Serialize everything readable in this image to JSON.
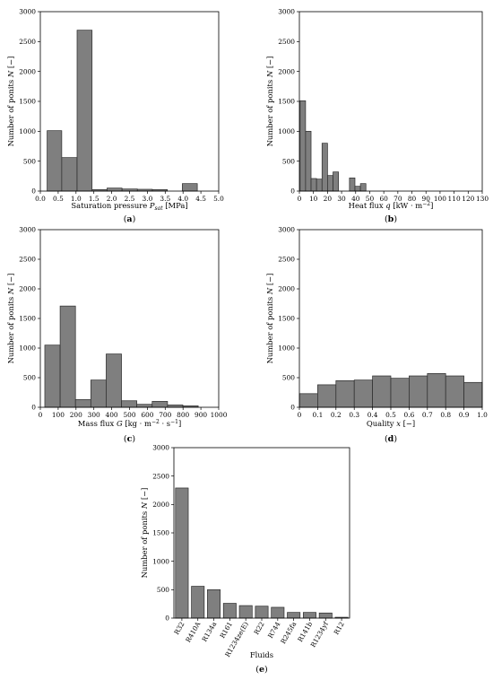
{
  "chart_data": [
    {
      "id": "a",
      "type": "histogram",
      "panel_label": "(a)",
      "xlabel": "Saturation pressure P_sat [MPa]",
      "xlabel_main": "Saturation pressure ",
      "xlabel_sym": "P",
      "xlabel_sub": "sat",
      "xlabel_unit": " [MPa]",
      "ylabel": "Number of ponits N [−]",
      "ylabel_main": "Number of ponits ",
      "ylabel_sym": "N",
      "ylabel_unit": " [−]",
      "xlim": [
        0,
        5.0
      ],
      "ylim": [
        0,
        3000
      ],
      "xticks": [
        0.0,
        0.5,
        1.0,
        1.5,
        2.0,
        2.5,
        3.0,
        3.5,
        4.0,
        4.5,
        5.0
      ],
      "xtick_labels": [
        "0.0",
        "0.5",
        "1.0",
        "1.5",
        "2.0",
        "2.5",
        "3.0",
        "3.5",
        "4.0",
        "4.5",
        "5.0"
      ],
      "yticks": [
        0,
        500,
        1000,
        1500,
        2000,
        2500,
        3000
      ],
      "ytick_labels": [
        "0",
        "500",
        "1000",
        "1500",
        "2000",
        "2500",
        "3000"
      ],
      "bins": [
        [
          0.19,
          0.6
        ],
        [
          0.6,
          1.03
        ],
        [
          1.03,
          1.45
        ],
        [
          1.45,
          1.87
        ],
        [
          1.87,
          2.29
        ],
        [
          2.29,
          2.72
        ],
        [
          2.72,
          3.14
        ],
        [
          3.14,
          3.56
        ],
        [
          3.56,
          3.98
        ],
        [
          3.98,
          4.4
        ]
      ],
      "values": [
        1010,
        560,
        2690,
        25,
        50,
        35,
        30,
        25,
        0,
        125
      ]
    },
    {
      "id": "b",
      "type": "histogram",
      "panel_label": "(b)",
      "xlabel": "Heat flux q [kW·m⁻²]",
      "xlabel_main": "Heat flux ",
      "xlabel_sym": "q",
      "xlabel_sub": "",
      "xlabel_unit": " [kW · m",
      "xlabel_sup": "−2",
      "xlabel_unit2": "]",
      "ylabel": "Number of ponits N [−]",
      "ylabel_main": "Number of ponits ",
      "ylabel_sym": "N",
      "ylabel_unit": " [−]",
      "xlim": [
        0,
        130
      ],
      "ylim": [
        0,
        3000
      ],
      "xticks": [
        0,
        10,
        20,
        30,
        40,
        50,
        60,
        70,
        80,
        90,
        100,
        110,
        120,
        130
      ],
      "xtick_labels": [
        "0",
        "10",
        "20",
        "30",
        "40",
        "50",
        "60",
        "70",
        "80",
        "90",
        "100",
        "110",
        "120",
        "130"
      ],
      "yticks": [
        0,
        500,
        1000,
        1500,
        2000,
        2500,
        3000
      ],
      "ytick_labels": [
        "0",
        "500",
        "1000",
        "1500",
        "2000",
        "2500",
        "3000"
      ],
      "bins": [
        [
          0.5,
          4.4
        ],
        [
          4.4,
          8.3
        ],
        [
          8.3,
          12.2
        ],
        [
          12.2,
          16.1
        ],
        [
          16.1,
          20.0
        ],
        [
          20.0,
          23.9
        ],
        [
          23.9,
          27.8
        ],
        [
          27.8,
          31.7
        ],
        [
          31.7,
          35.6
        ],
        [
          35.6,
          39.5
        ],
        [
          39.5,
          43.4
        ],
        [
          43.4,
          47.3
        ]
      ],
      "values": [
        1510,
        1000,
        210,
        200,
        800,
        260,
        320,
        0,
        0,
        220,
        80,
        125
      ]
    },
    {
      "id": "c",
      "type": "histogram",
      "panel_label": "(c)",
      "xlabel": "Mass flux G [kg·m⁻²·s⁻¹]",
      "xlabel_main": "Mass flux ",
      "xlabel_sym": "G",
      "xlabel_sub": "",
      "xlabel_unit": " [kg · m",
      "xlabel_sup": "−2",
      "xlabel_unit2": " · s",
      "xlabel_sup2": "−1",
      "xlabel_unit3": "]",
      "ylabel": "Number of ponits N [−]",
      "ylabel_main": "Number of ponits ",
      "ylabel_sym": "N",
      "ylabel_unit": " [−]",
      "xlim": [
        0,
        1000
      ],
      "ylim": [
        0,
        3000
      ],
      "xticks": [
        0,
        100,
        200,
        300,
        400,
        500,
        600,
        700,
        800,
        900,
        1000
      ],
      "xtick_labels": [
        "0",
        "100",
        "200",
        "300",
        "400",
        "500",
        "600",
        "700",
        "800",
        "900",
        "1000"
      ],
      "yticks": [
        0,
        500,
        1000,
        1500,
        2000,
        2500,
        3000
      ],
      "ytick_labels": [
        "0",
        "500",
        "1000",
        "1500",
        "2000",
        "2500",
        "3000"
      ],
      "bins": [
        [
          25,
          111
        ],
        [
          111,
          197
        ],
        [
          197,
          283
        ],
        [
          283,
          369
        ],
        [
          369,
          455
        ],
        [
          455,
          541
        ],
        [
          541,
          627
        ],
        [
          627,
          713
        ],
        [
          713,
          799
        ],
        [
          799,
          885
        ]
      ],
      "values": [
        1050,
        1710,
        130,
        460,
        900,
        110,
        50,
        100,
        40,
        25
      ]
    },
    {
      "id": "d",
      "type": "histogram",
      "panel_label": "(d)",
      "xlabel": "Quality x [−]",
      "xlabel_main": "Quality ",
      "xlabel_sym": "x",
      "xlabel_sub": "",
      "xlabel_unit": " [−]",
      "ylabel": "Number of ponits N [−]",
      "ylabel_main": "Number of ponits ",
      "ylabel_sym": "N",
      "ylabel_unit": " [−]",
      "xlim": [
        0,
        1.0
      ],
      "ylim": [
        0,
        3000
      ],
      "xticks": [
        0,
        0.1,
        0.2,
        0.3,
        0.4,
        0.5,
        0.6,
        0.7,
        0.8,
        0.9,
        1.0
      ],
      "xtick_labels": [
        "0",
        "0.1",
        "0.2",
        "0.3",
        "0.4",
        "0.5",
        "0.6",
        "0.7",
        "0.8",
        "0.9",
        "1.0"
      ],
      "yticks": [
        0,
        500,
        1000,
        1500,
        2000,
        2500,
        3000
      ],
      "ytick_labels": [
        "0",
        "500",
        "1000",
        "1500",
        "2000",
        "2500",
        "3000"
      ],
      "bins": [
        [
          0.0,
          0.1
        ],
        [
          0.1,
          0.2
        ],
        [
          0.2,
          0.3
        ],
        [
          0.3,
          0.4
        ],
        [
          0.4,
          0.5
        ],
        [
          0.5,
          0.6
        ],
        [
          0.6,
          0.7
        ],
        [
          0.7,
          0.8
        ],
        [
          0.8,
          0.9
        ],
        [
          0.9,
          1.0
        ]
      ],
      "values": [
        230,
        380,
        450,
        460,
        530,
        490,
        530,
        570,
        530,
        420
      ]
    },
    {
      "id": "e",
      "type": "bar",
      "panel_label": "(e)",
      "xlabel": "Fluids",
      "ylabel": "Number of ponits N [−]",
      "ylabel_main": "Number of ponits ",
      "ylabel_sym": "N",
      "ylabel_unit": " [−]",
      "ylim": [
        0,
        3000
      ],
      "yticks": [
        0,
        500,
        1000,
        1500,
        2000,
        2500,
        3000
      ],
      "ytick_labels": [
        "0",
        "500",
        "1000",
        "1500",
        "2000",
        "2500",
        "3000"
      ],
      "categories": [
        "R32",
        "R410A",
        "R134a",
        "R161",
        "R1234ze(E)",
        "R22",
        "R744",
        "R245fa",
        "R141b",
        "R1234yf",
        "R12"
      ],
      "values": [
        2290,
        560,
        500,
        260,
        220,
        210,
        190,
        100,
        100,
        90,
        15
      ]
    }
  ]
}
